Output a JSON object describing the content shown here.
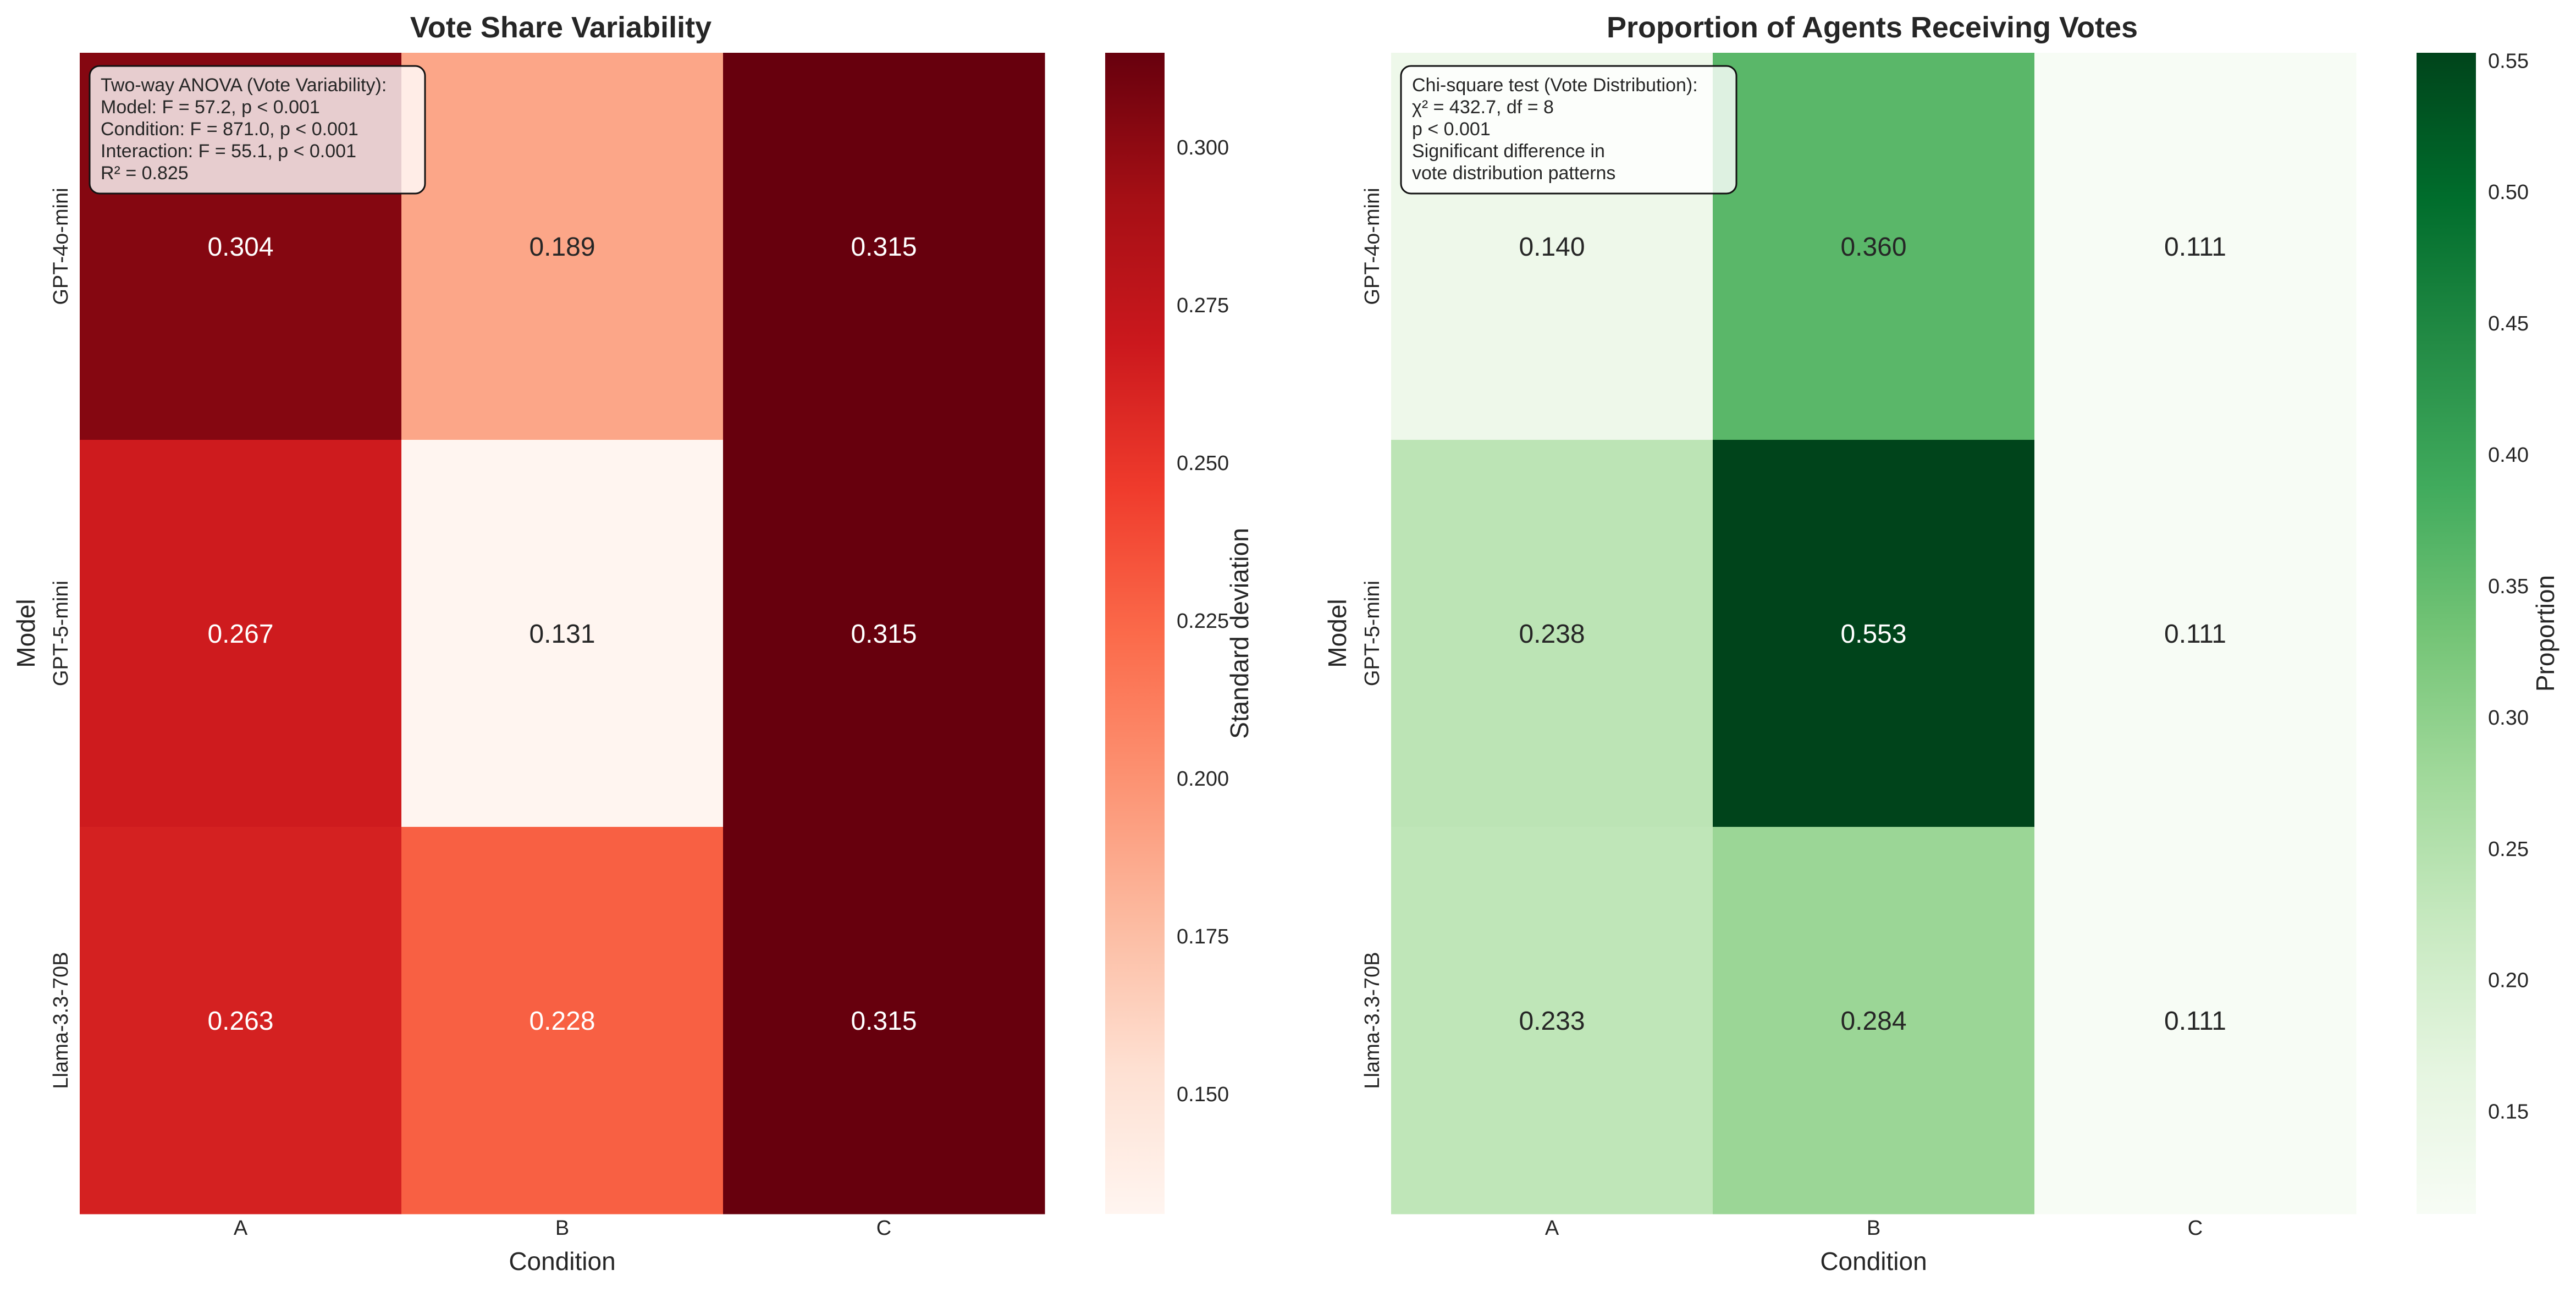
{
  "chart_data": [
    {
      "type": "heatmap",
      "title": "Vote Share Variability",
      "xlabel": "Condition",
      "ylabel": "Model",
      "categories": [
        "A",
        "B",
        "C"
      ],
      "rows": [
        "GPT-4o-mini",
        "GPT-5-mini",
        "Llama-3.3-70B"
      ],
      "values": [
        [
          0.304,
          0.189,
          0.315
        ],
        [
          0.267,
          0.131,
          0.315
        ],
        [
          0.263,
          0.228,
          0.315
        ]
      ],
      "cell_labels": [
        [
          "0.304",
          "0.189",
          "0.315"
        ],
        [
          "0.267",
          "0.131",
          "0.315"
        ],
        [
          "0.263",
          "0.228",
          "0.315"
        ]
      ],
      "colormap": "Reds",
      "color_stops": [
        "#fff5f0",
        "#fee0d2",
        "#fcbba1",
        "#fc9272",
        "#fb6a4a",
        "#ef3b2c",
        "#cb181d",
        "#a50f15",
        "#67000d"
      ],
      "colorbar": {
        "label": "Standard deviation",
        "range": [
          0.131,
          0.315
        ],
        "ticks": [
          0.15,
          0.175,
          0.2,
          0.225,
          0.25,
          0.275,
          0.3
        ],
        "tick_labels": [
          "0.150",
          "0.175",
          "0.200",
          "0.225",
          "0.250",
          "0.275",
          "0.300"
        ]
      },
      "annotation": {
        "lines": [
          "Two-way ANOVA (Vote Variability):",
          "Model: F = 57.2, p < 0.001",
          "Condition: F = 871.0, p < 0.001",
          "Interaction: F = 55.1, p < 0.001",
          "R² = 0.825"
        ],
        "placement": "top-left"
      }
    },
    {
      "type": "heatmap",
      "title": "Proportion of Agents Receiving Votes",
      "xlabel": "Condition",
      "ylabel": "Model",
      "categories": [
        "A",
        "B",
        "C"
      ],
      "rows": [
        "GPT-4o-mini",
        "GPT-5-mini",
        "Llama-3.3-70B"
      ],
      "values": [
        [
          0.14,
          0.36,
          0.111
        ],
        [
          0.238,
          0.553,
          0.111
        ],
        [
          0.233,
          0.284,
          0.111
        ]
      ],
      "cell_labels": [
        [
          "0.140",
          "0.360",
          "0.111"
        ],
        [
          "0.238",
          "0.553",
          "0.111"
        ],
        [
          "0.233",
          "0.284",
          "0.111"
        ]
      ],
      "colormap": "Greens",
      "color_stops": [
        "#f7fcf5",
        "#e5f5e0",
        "#c7e9c0",
        "#a1d99b",
        "#74c476",
        "#41ab5d",
        "#238b45",
        "#006d2c",
        "#00441b"
      ],
      "colorbar": {
        "label": "Proportion",
        "range": [
          0.111,
          0.553
        ],
        "ticks": [
          0.15,
          0.2,
          0.25,
          0.3,
          0.35,
          0.4,
          0.45,
          0.5,
          0.55
        ],
        "tick_labels": [
          "0.15",
          "0.20",
          "0.25",
          "0.30",
          "0.35",
          "0.40",
          "0.45",
          "0.50",
          "0.55"
        ]
      },
      "annotation": {
        "lines": [
          "Chi-square test (Vote Distribution):",
          "χ² = 432.7, df = 8",
          "p < 0.001",
          "Significant difference in",
          "vote distribution patterns"
        ],
        "placement": "top-left"
      }
    }
  ]
}
